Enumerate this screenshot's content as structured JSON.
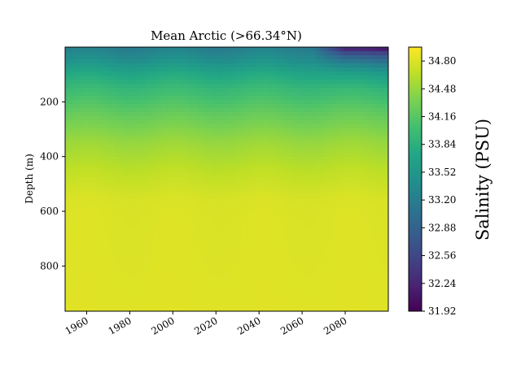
{
  "chart_data": {
    "type": "heatmap",
    "title": "Mean Arctic (>66.34°N)",
    "xlabel": "",
    "ylabel": "Depth (m)",
    "xlim": [
      1950,
      2100
    ],
    "ylim": [
      965,
      0
    ],
    "x_ticks": [
      1960,
      1980,
      2000,
      2020,
      2040,
      2060,
      2080
    ],
    "x_tick_labels": [
      "1960",
      "1980",
      "2000",
      "2020",
      "2040",
      "2060",
      "2080"
    ],
    "y_ticks": [
      200,
      400,
      600,
      800
    ],
    "y_tick_labels": [
      "200",
      "400",
      "600",
      "800"
    ],
    "colormap": "viridis",
    "colorbar": {
      "label": "Salinity (PSU)",
      "min": 31.92,
      "max": 34.96,
      "ticks": [
        31.92,
        32.24,
        32.56,
        32.88,
        33.2,
        33.52,
        33.84,
        34.16,
        34.48,
        34.8
      ],
      "tick_labels": [
        "31.92",
        "32.24",
        "32.56",
        "32.88",
        "33.20",
        "33.52",
        "33.84",
        "34.16",
        "34.48",
        "34.80"
      ]
    },
    "depth_profile": [
      {
        "depth": 0,
        "salinity": 33.2
      },
      {
        "depth": 20,
        "salinity": 33.3
      },
      {
        "depth": 50,
        "salinity": 33.45
      },
      {
        "depth": 100,
        "salinity": 33.75
      },
      {
        "depth": 150,
        "salinity": 33.95
      },
      {
        "depth": 200,
        "salinity": 34.1
      },
      {
        "depth": 250,
        "salinity": 34.25
      },
      {
        "depth": 300,
        "salinity": 34.38
      },
      {
        "depth": 350,
        "salinity": 34.5
      },
      {
        "depth": 400,
        "salinity": 34.58
      },
      {
        "depth": 450,
        "salinity": 34.66
      },
      {
        "depth": 500,
        "salinity": 34.72
      },
      {
        "depth": 550,
        "salinity": 34.78
      },
      {
        "depth": 600,
        "salinity": 34.8
      },
      {
        "depth": 965,
        "salinity": 34.82
      }
    ],
    "surface_freshening_after_year": 2075,
    "surface_min_salinity": 32.0
  }
}
